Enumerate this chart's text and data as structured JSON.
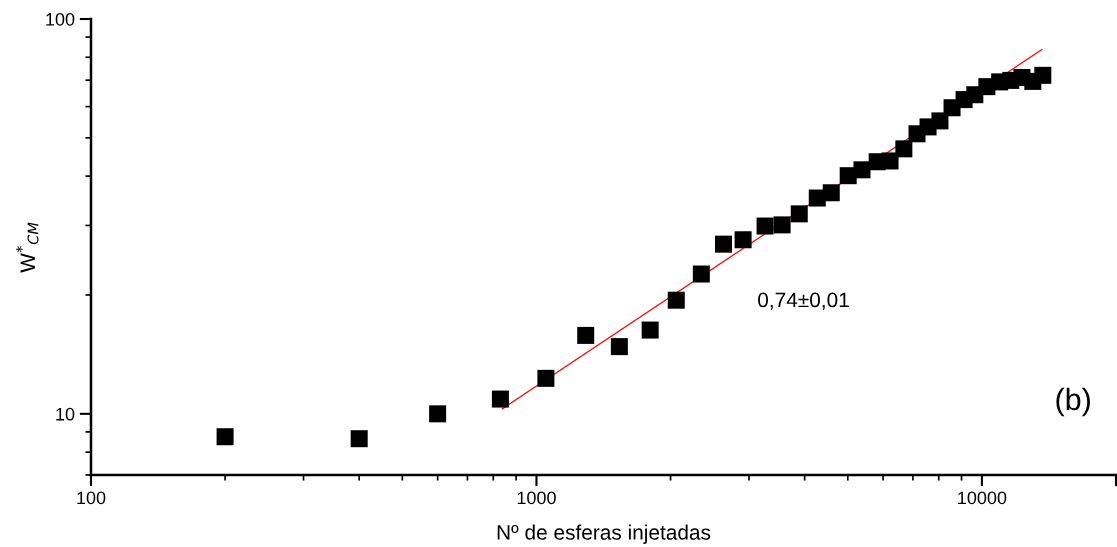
{
  "chart_data": {
    "type": "scatter",
    "xlabel": "Nº de esferas injetadas",
    "ylabel": "W$^{*}$$_{CM}$",
    "log": "xy",
    "xlim": [
      100,
      20000
    ],
    "xticks": [
      100,
      1000,
      10000,
      {
        "value": 20000,
        "label": null
      }
    ],
    "ylim": [
      7,
      100
    ],
    "yticks": [
      10,
      100
    ],
    "grid": false,
    "legend": false,
    "marker": "square",
    "series": [
      {
        "color": "#000000",
        "x": [
          200,
          400,
          600,
          830,
          1050,
          1290,
          1535,
          1800,
          2060,
          2345,
          2630,
          2910,
          3260,
          3560,
          3890,
          4270,
          4590,
          5010,
          5380,
          5820,
          6220,
          6680,
          7150,
          7570,
          8050,
          8570,
          9120,
          9640,
          10260,
          10960,
          11610,
          12300,
          13010,
          13700
        ],
        "values": [
          8.75,
          8.65,
          10.0,
          10.9,
          12.3,
          15.8,
          14.8,
          16.3,
          19.4,
          22.6,
          26.9,
          27.6,
          29.9,
          30.1,
          32.1,
          35.2,
          36.3,
          40.1,
          41.5,
          43.5,
          43.7,
          46.9,
          51.2,
          53.3,
          55.2,
          59.6,
          62.5,
          64.3,
          67.4,
          69.3,
          69.9,
          71.1,
          69.5,
          72.0
        ]
      },
      {
        "type": "line",
        "color": "#ff0000",
        "marker": "none",
        "line_style": "solid",
        "x": [
          839,
          13630
        ],
        "values": [
          10.3,
          83.7
        ]
      }
    ],
    "annotations": [
      "0,74±0,01",
      "(b)"
    ]
  }
}
